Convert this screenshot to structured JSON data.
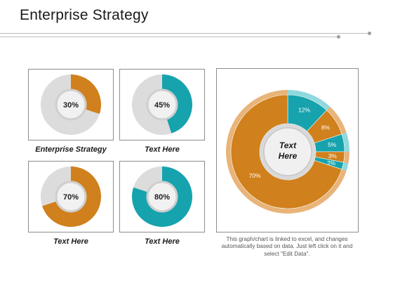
{
  "title": "Enterprise Strategy",
  "colors": {
    "orange": "#d0801c",
    "teal": "#16a3ad",
    "gray_track": "#dcdcdc",
    "orange_rim": "#e8b47a",
    "teal_rim": "#8fd8de"
  },
  "chart_data": [
    {
      "type": "pie",
      "variant": "donut",
      "label_center": "30%",
      "values": [
        30,
        70
      ],
      "series_colors": [
        "orange",
        "gray"
      ],
      "caption": "Enterprise Strategy"
    },
    {
      "type": "pie",
      "variant": "donut",
      "label_center": "45%",
      "values": [
        45,
        55
      ],
      "series_colors": [
        "teal",
        "gray"
      ],
      "caption": "Text Here"
    },
    {
      "type": "pie",
      "variant": "donut",
      "label_center": "70%",
      "values": [
        70,
        30
      ],
      "series_colors": [
        "orange",
        "gray"
      ],
      "caption": "Text Here"
    },
    {
      "type": "pie",
      "variant": "donut",
      "label_center": "80%",
      "values": [
        80,
        20
      ],
      "series_colors": [
        "teal",
        "gray"
      ],
      "caption": "Text Here"
    },
    {
      "type": "pie",
      "variant": "donut",
      "center_text": [
        "Text",
        "Here"
      ],
      "categories": [
        "12%",
        "8%",
        "5%",
        "3%",
        "2%",
        "70%"
      ],
      "values": [
        12,
        8,
        5,
        3,
        2,
        70
      ],
      "slice_colors": [
        "teal",
        "orange",
        "teal",
        "orange",
        "teal",
        "orange"
      ]
    }
  ],
  "note": "This graph/chart is linked to excel, and changes automatically based on data. Just left click on it and select \"Edit Data\"."
}
